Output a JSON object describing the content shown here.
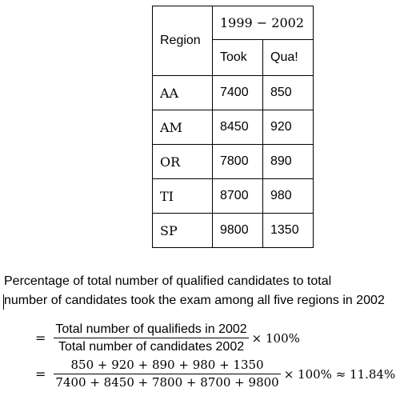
{
  "table": {
    "header_region": "Region",
    "header_period": "1999 − 2002",
    "header_took": "Took",
    "header_qua": "Qua!",
    "rows": [
      {
        "region": "AA",
        "took": "7400",
        "qua": "850"
      },
      {
        "region": "AM",
        "took": "8450",
        "qua": "920"
      },
      {
        "region": "OR",
        "took": "7800",
        "qua": "890"
      },
      {
        "region": "TI",
        "took": "8700",
        "qua": "980"
      },
      {
        "region": "SP",
        "took": "9800",
        "qua": "1350"
      }
    ]
  },
  "text": {
    "line1": "Percentage of total number of qualified candidates to total",
    "line2": "number of candidates took the exam among all five regions in 2002"
  },
  "equation1": {
    "sign": "=",
    "numerator": "Total number of qualifieds in 2002",
    "denominator": "Total number of candidates 2002",
    "tail": "× 100%"
  },
  "equation2": {
    "sign": "=",
    "numerator": "850 + 920 + 890 + 980 + 1350",
    "denominator": "7400 + 8450 + 7800 + 8700 + 9800",
    "tail": "× 100% ≈ 11.84%"
  }
}
